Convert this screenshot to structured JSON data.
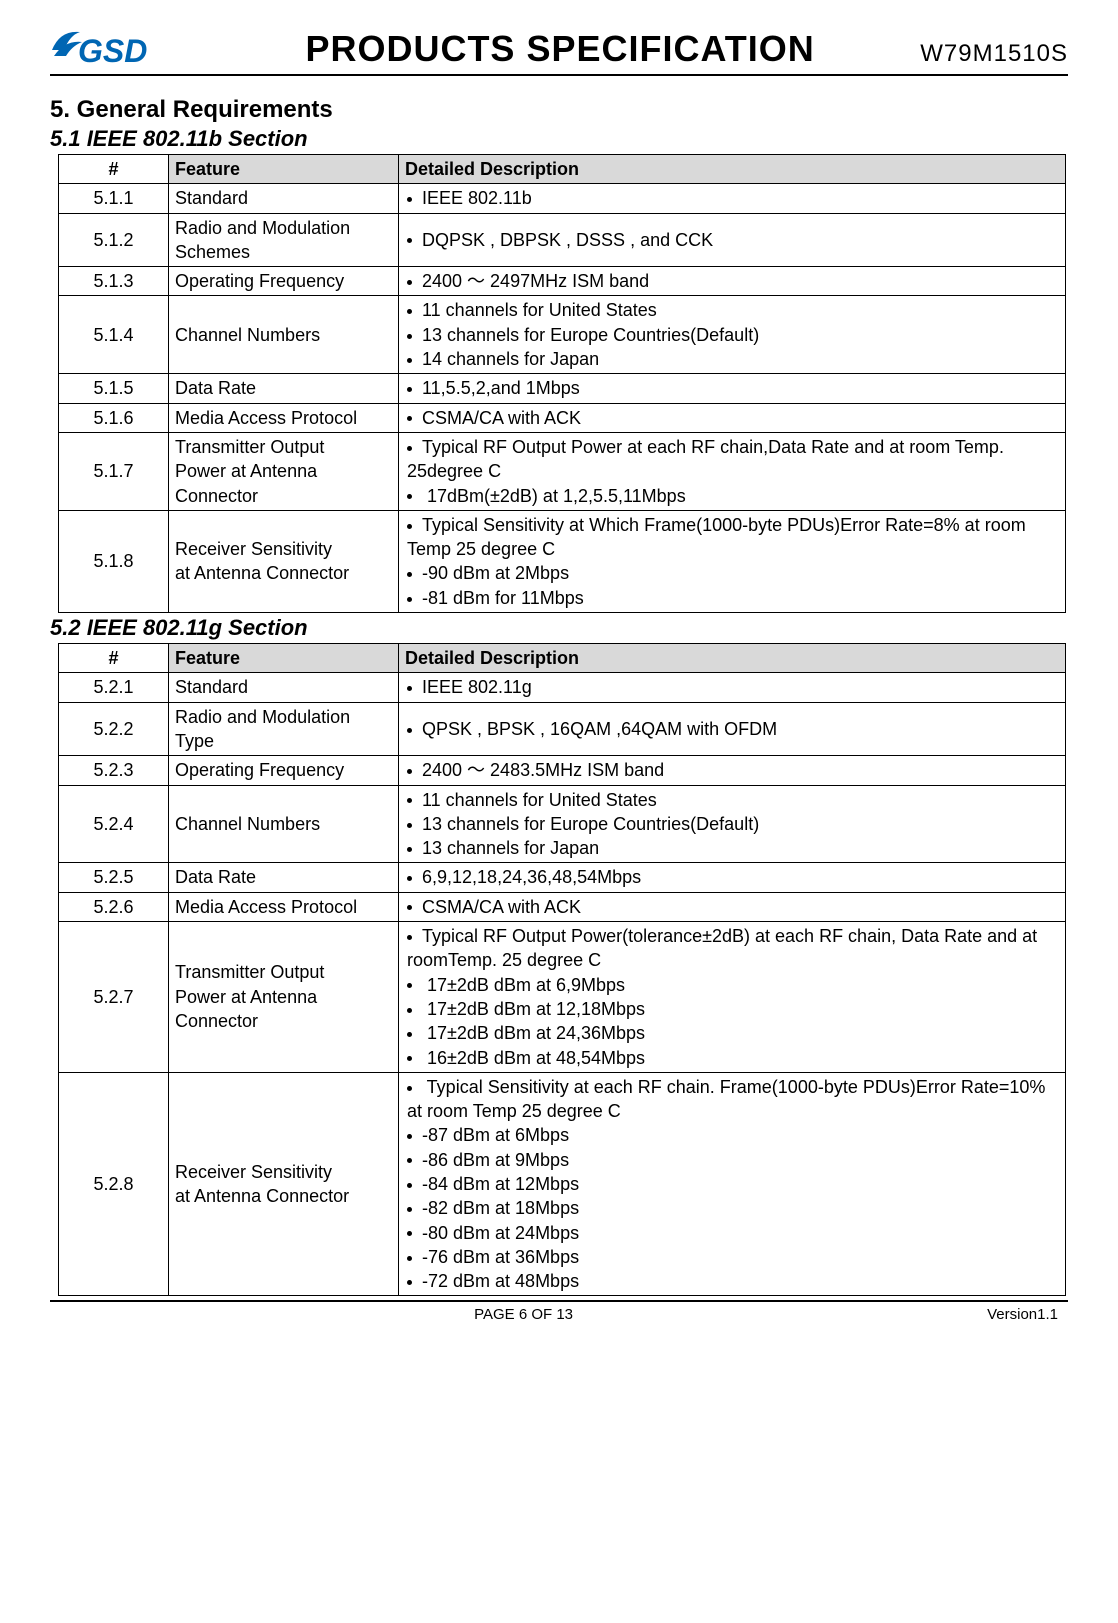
{
  "header": {
    "main_title": "PRODUCTS SPECIFICATION",
    "model": "W79M1510S"
  },
  "sections": {
    "heading5": "5.    General Requirements",
    "heading51": "5.1    IEEE 802.11b Section",
    "heading52": "5.2     IEEE 802.11g Section"
  },
  "table_headers": {
    "hash": "#",
    "feature": "Feature",
    "description": "Detailed Description"
  },
  "table51": [
    {
      "num": "5.1.1",
      "feature": "Standard",
      "desc": [
        "IEEE 802.11b"
      ]
    },
    {
      "num": "5.1.2",
      "feature": "Radio and Modulation Schemes",
      "desc": [
        "DQPSK , DBPSK , DSSS , and CCK"
      ]
    },
    {
      "num": "5.1.3",
      "feature": "Operating Frequency",
      "desc": [
        "2400  ～  2497MHz ISM band"
      ]
    },
    {
      "num": "5.1.4",
      "feature": "Channel Numbers",
      "desc": [
        "11 channels for United States",
        "13 channels for Europe Countries(Default)",
        "14 channels for Japan"
      ]
    },
    {
      "num": "5.1.5",
      "feature": "Data Rate",
      "desc": [
        "11,5.5,2,and 1Mbps"
      ]
    },
    {
      "num": "5.1.6",
      "feature": "Media Access Protocol",
      "desc": [
        "CSMA/CA with ACK"
      ]
    },
    {
      "num": "5.1.7",
      "feature": "Transmitter Output\nPower at Antenna Connector",
      "desc": [
        "Typical RF Output Power at each RF chain,Data Rate and at room Temp. 25degree C",
        " 17dBm(±2dB) at 1,2,5.5,11Mbps"
      ]
    },
    {
      "num": "5.1.8",
      "feature": "Receiver Sensitivity\nat Antenna Connector",
      "desc": [
        "Typical  Sensitivity  at  Which  Frame(1000-byte  PDUs)Error Rate=8% at room Temp 25 degree C",
        "-90 dBm at 2Mbps",
        "-81 dBm for 11Mbps"
      ]
    }
  ],
  "table52": [
    {
      "num": "5.2.1",
      "feature": "Standard",
      "desc": [
        "IEEE 802.11g"
      ]
    },
    {
      "num": "5.2.2",
      "feature": "Radio and Modulation Type",
      "desc": [
        "QPSK , BPSK , 16QAM ,64QAM with OFDM"
      ]
    },
    {
      "num": "5.2.3",
      "feature": "Operating Frequency",
      "desc": [
        "2400  ～  2483.5MHz ISM band"
      ]
    },
    {
      "num": "5.2.4",
      "feature": "Channel Numbers",
      "desc": [
        "11 channels for United States",
        "13 channels for Europe Countries(Default)",
        "13 channels for Japan"
      ]
    },
    {
      "num": "5.2.5",
      "feature": "Data Rate",
      "desc": [
        "6,9,12,18,24,36,48,54Mbps"
      ]
    },
    {
      "num": "5.2.6",
      "feature": "Media Access Protocol",
      "desc": [
        "CSMA/CA with ACK"
      ]
    },
    {
      "num": "5.2.7",
      "feature": "Transmitter Output\nPower at Antenna Connector",
      "desc": [
        "Typical RF Output Power(tolerance±2dB) at each RF chain, Data Rate and at roomTemp. 25 degree C",
        " 17±2dB dBm at 6,9Mbps",
        " 17±2dB dBm at 12,18Mbps",
        " 17±2dB dBm at 24,36Mbps",
        " 16±2dB dBm at 48,54Mbps"
      ]
    },
    {
      "num": "5.2.8",
      "feature": "Receiver Sensitivity\nat Antenna Connector",
      "desc": [
        "  Typical  Sensitivity  at  each  RF  chain.  Frame(1000-byte PDUs)Error Rate=10% at room Temp 25 degree C",
        "-87 dBm at 6Mbps",
        "-86 dBm at 9Mbps",
        "-84 dBm at 12Mbps",
        "-82 dBm at 18Mbps",
        "-80 dBm at 24Mbps",
        "-76 dBm at 36Mbps",
        "-72 dBm at 48Mbps"
      ]
    }
  ],
  "footer": {
    "page": "PAGE    6    OF    13",
    "version": "Version1.1"
  },
  "colors": {
    "header_bg": "#d9d9d9",
    "logo_blue": "#0066b3"
  }
}
